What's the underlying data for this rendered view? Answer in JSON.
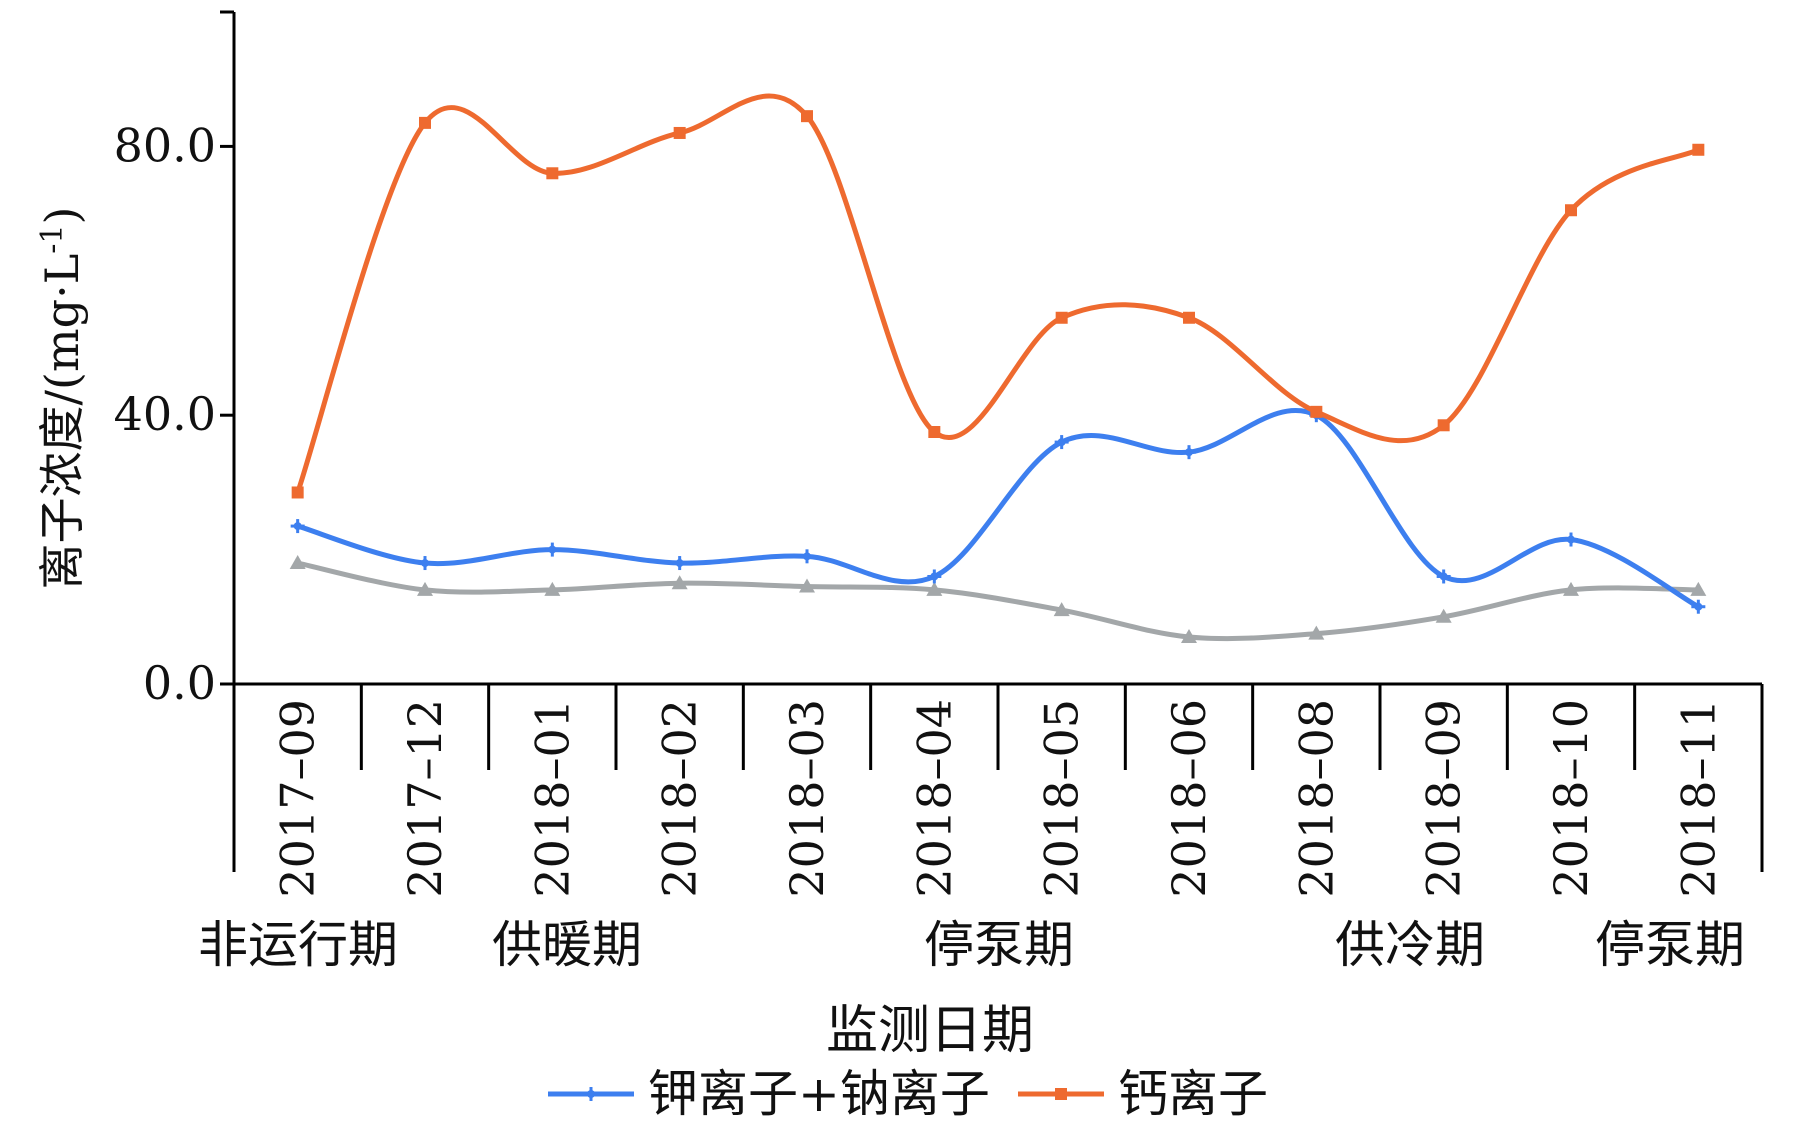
{
  "chart_data": {
    "type": "line",
    "smooth": true,
    "categories": [
      "2017–09",
      "2017–12",
      "2018–01",
      "2018–02",
      "2018–03",
      "2018–04",
      "2018–05",
      "2018–06",
      "2018–08",
      "2018–09",
      "2018–10",
      "2018–11"
    ],
    "ylabel": "离子浓度/(mg·L",
    "ylabel_sup": "-1",
    "ylabel_close": ")",
    "xlabel": "监测日期",
    "ylim": [
      0,
      100
    ],
    "yticks": [
      "0.0",
      "40.0",
      "80.0"
    ],
    "ytick_values": [
      0,
      40,
      80
    ],
    "grid": false,
    "legend_position": "bottom",
    "period_labels": [
      "非运行期",
      "供暖期",
      "停泵期",
      "供冷期",
      "停泵期"
    ],
    "series": [
      {
        "name": "钾离子+钠离子",
        "color": "#3d7fef",
        "marker": "plus",
        "values": [
          23.5,
          18.0,
          20.0,
          18.0,
          19.0,
          16.0,
          36.0,
          34.5,
          40.0,
          16.0,
          21.5,
          11.5
        ]
      },
      {
        "name": "钙离子",
        "color": "#ee6a2f",
        "marker": "square",
        "values": [
          28.5,
          83.5,
          76.0,
          82.0,
          84.5,
          37.5,
          54.5,
          54.5,
          40.5,
          38.5,
          70.5,
          79.5
        ]
      },
      {
        "name": "",
        "color": "#a3a7a9",
        "marker": "triangle",
        "values": [
          18.0,
          14.0,
          14.0,
          15.0,
          14.5,
          14.0,
          11.0,
          7.0,
          7.5,
          10.0,
          14.0,
          14.0
        ]
      }
    ]
  }
}
